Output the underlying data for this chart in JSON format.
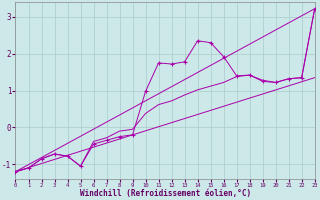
{
  "xlabel": "Windchill (Refroidissement éolien,°C)",
  "background_color": "#cce8e8",
  "grid_color": "#aacccc",
  "line_color": "#aa00aa",
  "line1_x": [
    0,
    1,
    2,
    3,
    4,
    5,
    6,
    7,
    8,
    9,
    10,
    11,
    12,
    13,
    14,
    15,
    16,
    17,
    18,
    19,
    20,
    21,
    22,
    23
  ],
  "line1_y": [
    -1.2,
    -1.1,
    -0.85,
    -0.72,
    -0.78,
    -1.05,
    -0.45,
    -0.35,
    -0.25,
    -0.2,
    0.98,
    1.75,
    1.72,
    1.78,
    2.35,
    2.3,
    1.92,
    1.4,
    1.42,
    1.25,
    1.22,
    1.32,
    1.35,
    3.22
  ],
  "line2_x": [
    0,
    1,
    2,
    3,
    4,
    5,
    6,
    7,
    8,
    9,
    10,
    11,
    12,
    13,
    14,
    15,
    16,
    17,
    18,
    19,
    20,
    21,
    22,
    23
  ],
  "line2_y": [
    -1.2,
    -1.1,
    -0.85,
    -0.72,
    -0.78,
    -1.05,
    -0.38,
    -0.28,
    -0.1,
    -0.05,
    0.38,
    0.62,
    0.72,
    0.88,
    1.02,
    1.12,
    1.22,
    1.38,
    1.42,
    1.28,
    1.22,
    1.32,
    1.35,
    3.22
  ],
  "line3_x": [
    0,
    23
  ],
  "line3_y": [
    -1.2,
    3.22
  ],
  "line4_x": [
    0,
    23
  ],
  "line4_y": [
    -1.2,
    1.35
  ],
  "xlim": [
    0,
    23
  ],
  "ylim": [
    -1.4,
    3.4
  ],
  "yticks": [
    -1,
    0,
    1,
    2,
    3
  ],
  "xticks": [
    0,
    1,
    2,
    3,
    4,
    5,
    6,
    7,
    8,
    9,
    10,
    11,
    12,
    13,
    14,
    15,
    16,
    17,
    18,
    19,
    20,
    21,
    22,
    23
  ]
}
